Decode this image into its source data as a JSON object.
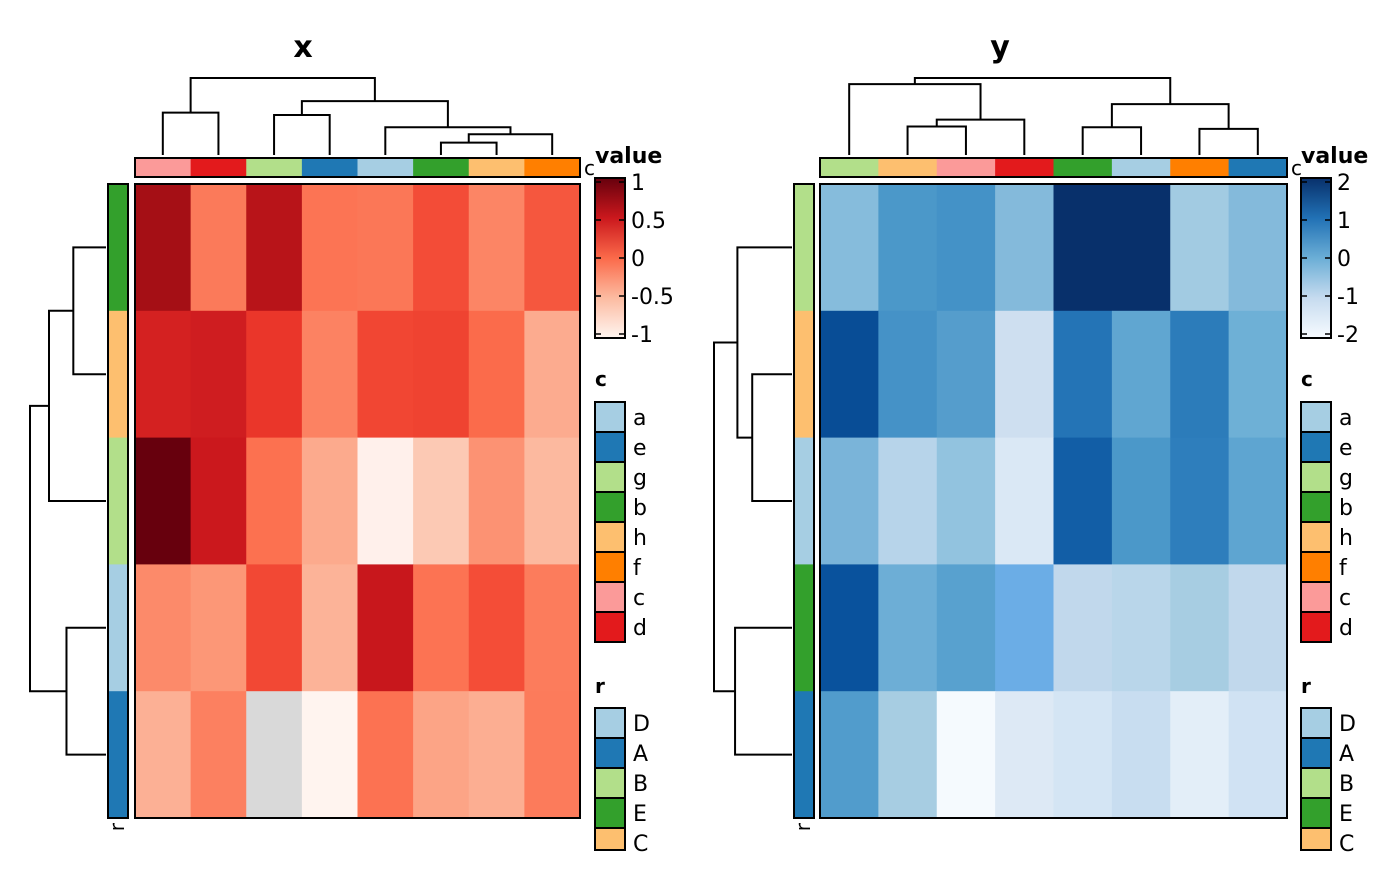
{
  "chart_data": [
    {
      "type": "heatmap",
      "title": "x",
      "columns": [
        "c",
        "d",
        "g",
        "e",
        "a",
        "b",
        "h",
        "f"
      ],
      "rows": [
        "E",
        "C",
        "B",
        "D",
        "A"
      ],
      "values": [
        [
          0.85,
          -0.1,
          0.75,
          -0.05,
          -0.07,
          0.15,
          -0.2,
          0.1
        ],
        [
          0.55,
          0.6,
          0.35,
          -0.17,
          0.22,
          0.25,
          0.02,
          -0.5
        ],
        [
          1.0,
          0.62,
          -0.03,
          -0.48,
          -0.97,
          -0.7,
          -0.3,
          -0.6
        ],
        [
          -0.25,
          -0.33,
          0.2,
          -0.55,
          0.65,
          -0.04,
          0.17,
          -0.1
        ],
        [
          -0.53,
          -0.13,
          null,
          -1.0,
          -0.03,
          -0.43,
          -0.52,
          -0.09
        ]
      ],
      "cell_colors": [
        [
          "#a50f15",
          "#fb7a5a",
          "#b81419",
          "#fc7454",
          "#fb7757",
          "#f34c37",
          "#fc8565",
          "#f5573e"
        ],
        [
          "#d42121",
          "#cf1d20",
          "#ea362a",
          "#fc8262",
          "#f14633",
          "#ef4331",
          "#fb6b4b",
          "#fcab8f"
        ],
        [
          "#67000d",
          "#cb181d",
          "#fc7150",
          "#fcaa8d",
          "#fff0eb",
          "#fcc9b4",
          "#fc9273",
          "#fcb99f"
        ],
        [
          "#fc8a6a",
          "#fc9777",
          "#f24834",
          "#fcb398",
          "#c8171c",
          "#fc7353",
          "#f44d37",
          "#fc7c5c"
        ],
        [
          "#fcb095",
          "#fc8060",
          "#d9d9d9",
          "#fff4ef",
          "#fc7252",
          "#fca486",
          "#fcae92",
          "#fc7b5b"
        ]
      ],
      "na_color": "#d9d9d9",
      "column_dendrogram": "((c,d),((g,e),(a,((b,h),f))))",
      "row_dendrogram": "(((E,C),B),(D,A))",
      "column_annotation_name": "c",
      "row_annotation_name": "r",
      "legend": {
        "title": "value",
        "ticks": [
          "1",
          "0.5",
          "0",
          "-0.5",
          "-1"
        ],
        "range": [
          -1,
          1
        ],
        "gradient": [
          "#fff5f0",
          "#fcbba1",
          "#fb6a4a",
          "#cb181d",
          "#67000d"
        ],
        "placement": "right"
      }
    },
    {
      "type": "heatmap",
      "title": "y",
      "columns": [
        "g",
        "h",
        "c",
        "d",
        "b",
        "a",
        "f",
        "e"
      ],
      "rows": [
        "B",
        "C",
        "D",
        "E",
        "A"
      ],
      "values": [
        [
          0.0,
          0.7,
          0.8,
          0.1,
          2.0,
          2.0,
          -0.3,
          0.05
        ],
        [
          1.5,
          0.75,
          0.6,
          -0.8,
          1.0,
          0.4,
          0.95,
          0.3
        ],
        [
          0.2,
          -0.6,
          -0.1,
          -1.0,
          1.3,
          0.7,
          0.95,
          0.5
        ],
        [
          1.45,
          0.3,
          0.55,
          0.35,
          -0.7,
          -0.6,
          -0.4,
          -0.7
        ],
        [
          0.6,
          -0.4,
          -1.9,
          -1.1,
          -0.9,
          -0.75,
          -1.2,
          -0.85
        ]
      ],
      "cell_colors": [
        [
          "#86bcdc",
          "#4b98c9",
          "#4492c7",
          "#84badb",
          "#08306b",
          "#08306b",
          "#a2cbe2",
          "#84badb"
        ],
        [
          "#084d96",
          "#4592c7",
          "#559dcc",
          "#cedff0",
          "#2474b6",
          "#60a6d1",
          "#2c7cba",
          "#6eb0d6"
        ],
        [
          "#7ab4d9",
          "#b7d4ea",
          "#92c3df",
          "#dae8f5",
          "#125ea6",
          "#4b98c9",
          "#2e7ebc",
          "#5ea5d1"
        ],
        [
          "#09529d",
          "#6daed6",
          "#58a1cf",
          "#6bade6",
          "#c1d8ec",
          "#b9d6ea",
          "#a7cde2",
          "#c1d8ec"
        ],
        [
          "#519ccc",
          "#a7cde2",
          "#f5fafe",
          "#dde9f5",
          "#d4e5f4",
          "#c8ddf0",
          "#e3eef8",
          "#d0e2f3"
        ]
      ],
      "column_dendrogram": "((g,((h,c),d)),((b,a),(f,e)))",
      "row_dendrogram": "((B,(C,D)),(E,A))",
      "column_annotation_name": "c",
      "row_annotation_name": "r",
      "legend": {
        "title": "value",
        "ticks": [
          "2",
          "1",
          "0",
          "-1",
          "-2"
        ],
        "range": [
          -2,
          2
        ],
        "gradient": [
          "#f7fbff",
          "#c6dbef",
          "#6baed6",
          "#2171b5",
          "#08306b"
        ],
        "placement": "right"
      }
    }
  ],
  "annotation_colors": {
    "c": {
      "a": "#a6cee3",
      "e": "#1f78b4",
      "g": "#b2df8a",
      "b": "#33a02c",
      "h": "#fdbf6f",
      "f": "#ff7f00",
      "c": "#fb9a99",
      "d": "#e31a1c"
    },
    "r": {
      "D": "#a6cee3",
      "A": "#1f78b4",
      "B": "#b2df8a",
      "E": "#33a02c",
      "C": "#fdbf6f"
    }
  },
  "legends": {
    "c_title": "c",
    "c_items": [
      "a",
      "e",
      "g",
      "b",
      "h",
      "f",
      "c",
      "d"
    ],
    "r_title": "r",
    "r_items": [
      "D",
      "A",
      "B",
      "E",
      "C"
    ]
  }
}
